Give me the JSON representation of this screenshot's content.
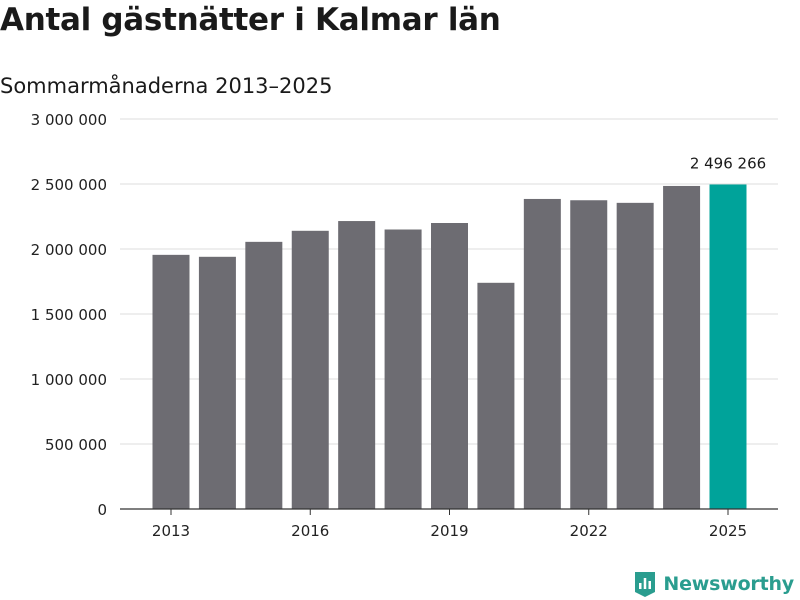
{
  "chart_data": {
    "type": "bar",
    "title": "Antal gästnätter i Kalmar län",
    "subtitle": "Sommarmånaderna 2013–2025",
    "categories": [
      "2013",
      "2014",
      "2015",
      "2016",
      "2017",
      "2018",
      "2019",
      "2020",
      "2021",
      "2022",
      "2023",
      "2024",
      "2025"
    ],
    "x_tick_labels": [
      "2013",
      "2016",
      "2019",
      "2022",
      "2025"
    ],
    "values": [
      1955000,
      1940000,
      2055000,
      2140000,
      2215000,
      2150000,
      2200000,
      1740000,
      2385000,
      2375000,
      2355000,
      2485000,
      2496266
    ],
    "highlight": {
      "category": "2025",
      "label": "2 496 266"
    },
    "ylim": [
      0,
      3000000
    ],
    "y_ticks": [
      0,
      500000,
      1000000,
      1500000,
      2000000,
      2500000,
      3000000
    ],
    "y_tick_labels": [
      "0",
      "500 000",
      "1 000 000",
      "1 500 000",
      "2 000 000",
      "2 500 000",
      "3 000 000"
    ],
    "grid": true,
    "colors": {
      "bar": "#6d6c72",
      "highlight": "#00a39a",
      "grid": "#dddddd",
      "axis": "#333333"
    }
  },
  "brand": {
    "name": "Newsworthy",
    "color": "#2a9d8f",
    "icon": "newsworthy-logo-icon"
  }
}
